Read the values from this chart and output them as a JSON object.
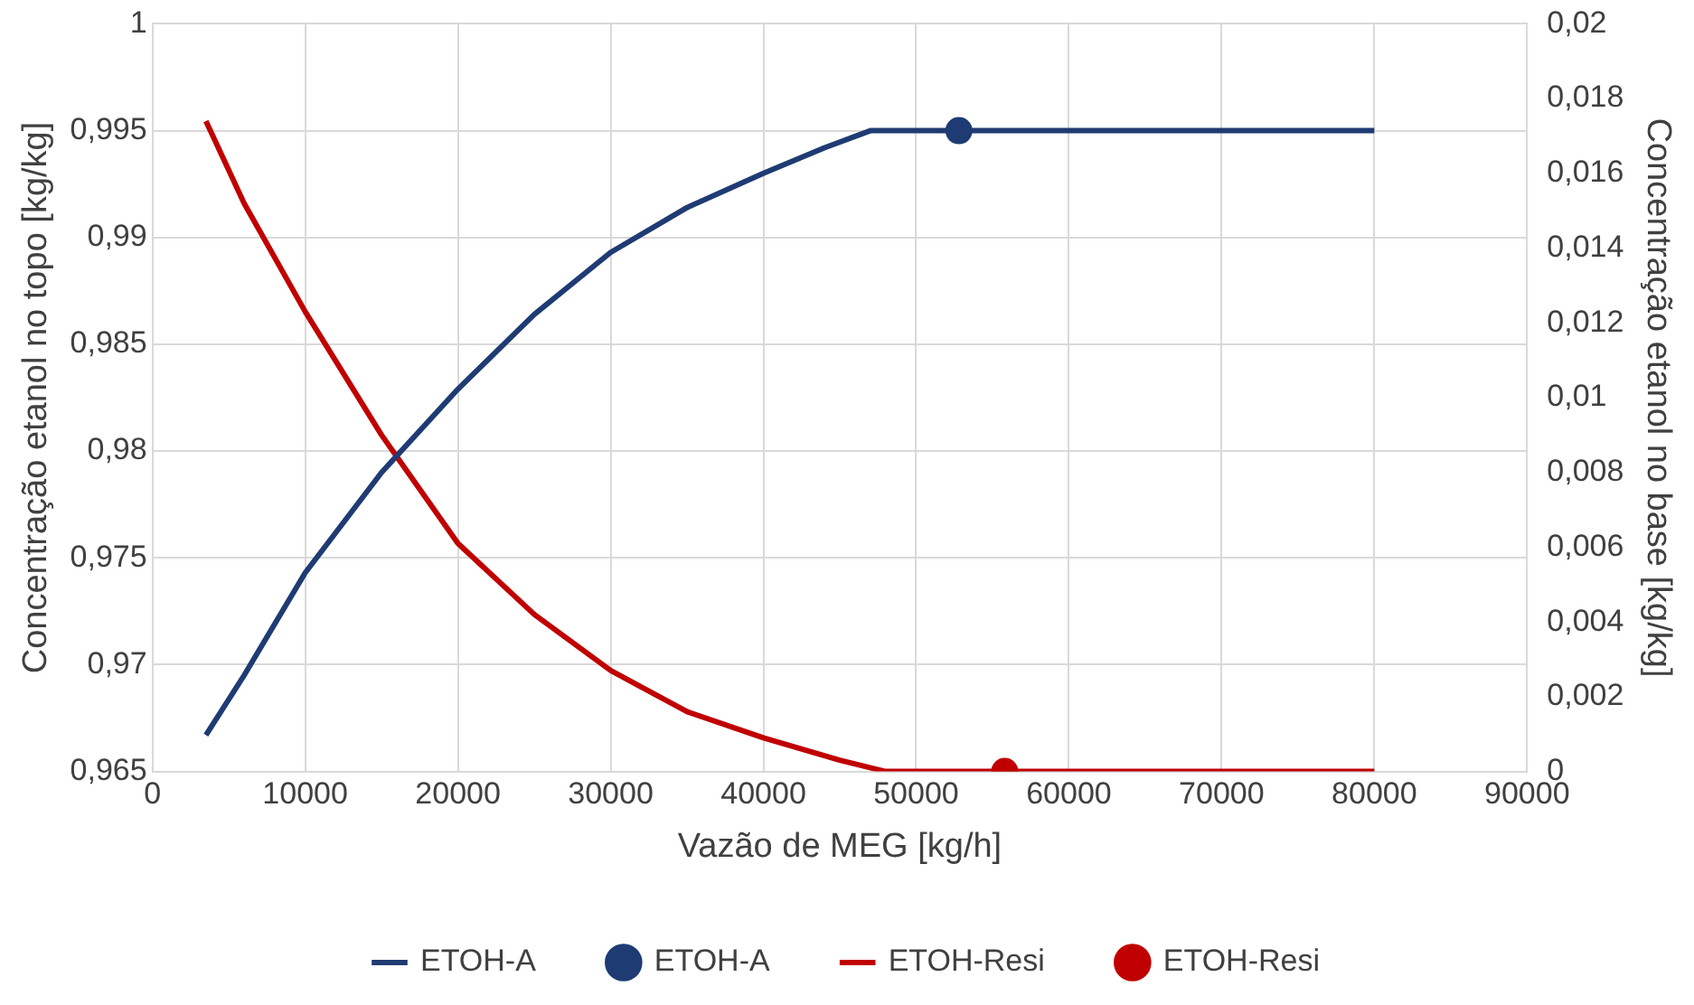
{
  "chart_data": {
    "type": "line",
    "xlabel": "Vazão de MEG [kg/h]",
    "ylabel": "Concentração etanol no topo [kg/kg]",
    "y2label": "Concentração etanol no base [kg/kg]",
    "xlim": [
      0,
      90000
    ],
    "xticks": [
      0,
      10000,
      20000,
      30000,
      40000,
      50000,
      60000,
      70000,
      80000,
      90000
    ],
    "ylim": [
      0.965,
      1
    ],
    "yticks": [
      {
        "value": 0.965,
        "label": "0,965"
      },
      {
        "value": 0.97,
        "label": "0,97"
      },
      {
        "value": 0.975,
        "label": "0,975"
      },
      {
        "value": 0.98,
        "label": "0,98"
      },
      {
        "value": 0.985,
        "label": "0,985"
      },
      {
        "value": 0.99,
        "label": "0,99"
      },
      {
        "value": 0.995,
        "label": "0,995"
      },
      {
        "value": 1,
        "label": "1"
      }
    ],
    "y2lim": [
      0,
      0.02
    ],
    "y2ticks": [
      0,
      {
        "value": 0.002,
        "label": "0,002"
      },
      {
        "value": 0.004,
        "label": "0,004"
      },
      {
        "value": 0.006,
        "label": "0,006"
      },
      {
        "value": 0.008,
        "label": "0,008"
      },
      {
        "value": 0.01,
        "label": "0,01"
      },
      {
        "value": 0.012,
        "label": "0,012"
      },
      {
        "value": 0.014,
        "label": "0,014"
      },
      {
        "value": 0.016,
        "label": "0,016"
      },
      {
        "value": 0.018,
        "label": "0,018"
      },
      {
        "value": 0.02,
        "label": "0,02"
      }
    ],
    "grid": true,
    "legend": "bottom",
    "series": [
      {
        "name": "ETOH-A",
        "color": "#1f3b73",
        "x": [
          3500,
          6000,
          10000,
          15000,
          20000,
          25000,
          30000,
          35000,
          40000,
          44000,
          47000,
          50000,
          60000,
          70000,
          80000
        ],
        "values": [
          0.9667,
          0.9695,
          0.9743,
          0.979,
          0.9829,
          0.9864,
          0.9893,
          0.9914,
          0.993,
          0.9942,
          0.995,
          0.995,
          0.995,
          0.995,
          0.995
        ]
      },
      {
        "name": "ETOH-A",
        "type": "scatter",
        "color": "#1f3b73",
        "x": [
          52800
        ],
        "values": [
          0.995
        ]
      },
      {
        "name": "ETOH-Resi",
        "axis": "y2",
        "color": "#c00000",
        "x": [
          3500,
          6000,
          10000,
          15000,
          20000,
          25000,
          30000,
          35000,
          40000,
          45000,
          48000,
          50000,
          60000,
          70000,
          80000
        ],
        "values": [
          0.0174,
          0.0152,
          0.0123,
          0.009,
          0.0061,
          0.0042,
          0.0027,
          0.0016,
          0.0009,
          0.0003,
          0,
          0,
          0,
          0,
          0
        ]
      },
      {
        "name": "ETOH-Resi",
        "type": "scatter",
        "axis": "y2",
        "color": "#c00000",
        "x": [
          55800
        ],
        "values": [
          0
        ]
      }
    ]
  }
}
